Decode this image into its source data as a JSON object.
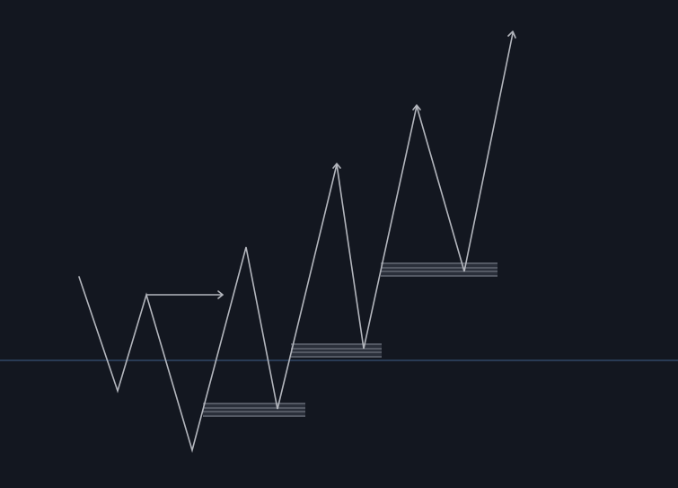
{
  "diagram": {
    "type": "market-structure-sketch",
    "description_label": "",
    "colors": {
      "background": "#131720",
      "path": "#b3b6bd",
      "zone_fill": "#2a2f3a",
      "zone_line": "#7d838f",
      "baseline": "#3f5f8a"
    },
    "icons": [
      "trend-arrow-icon",
      "break-of-structure-arrow-icon"
    ]
  }
}
